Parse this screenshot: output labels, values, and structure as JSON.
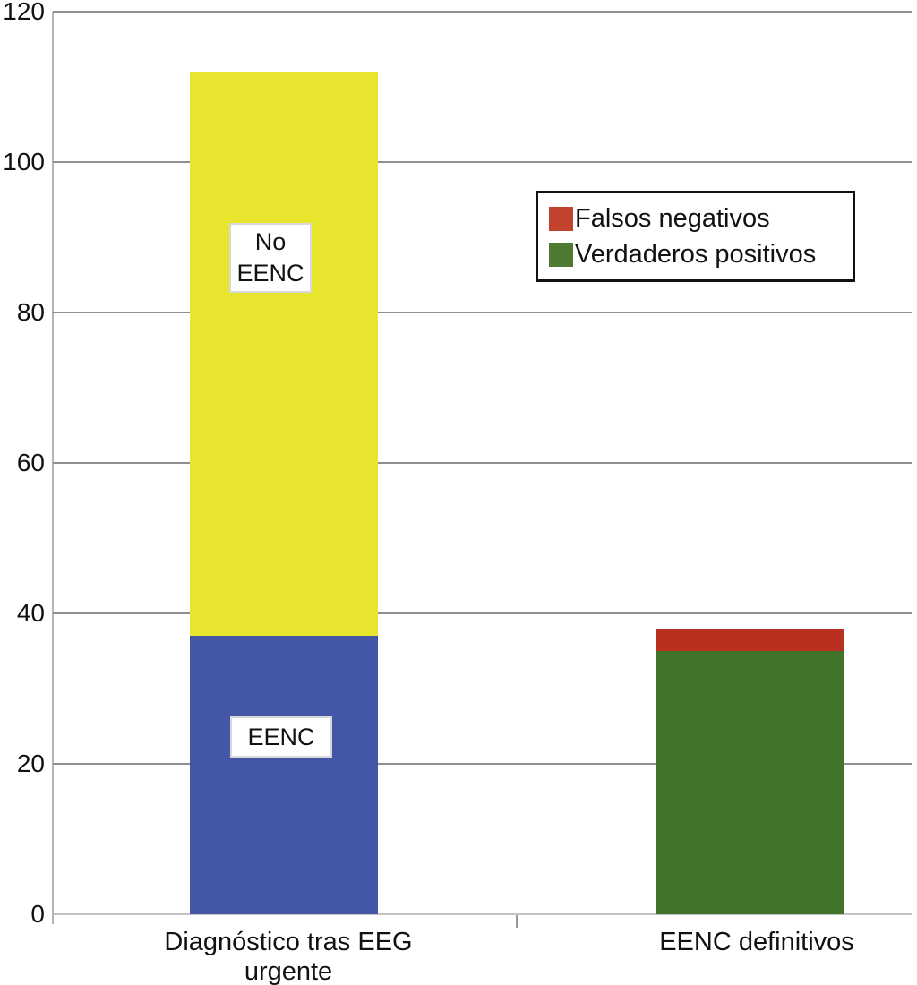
{
  "chart_data": {
    "type": "bar",
    "stacked": true,
    "title": "",
    "xlabel": "",
    "ylabel": "",
    "grid": true,
    "y_axis": {
      "min": 0,
      "max": 120,
      "step": 20,
      "ticks": [
        0,
        20,
        40,
        60,
        80,
        100,
        120
      ]
    },
    "categories": [
      "Diagnóstico tras EEG urgente",
      "EENC definitivos"
    ],
    "x_tick_label_lines": [
      [
        "Diagnóstico tras EEG",
        "urgente"
      ],
      [
        "EENC definitivos"
      ]
    ],
    "bars": [
      {
        "category": "Diagnóstico tras EEG urgente",
        "total": 112,
        "segments": [
          {
            "name": "EENC",
            "value": 37,
            "color": "#4456a6",
            "inner_label_lines": [
              "EENC"
            ]
          },
          {
            "name": "No EENC",
            "value": 75,
            "color": "#e7e52e",
            "inner_label_lines": [
              "No",
              "EENC"
            ]
          }
        ]
      },
      {
        "category": "EENC definitivos",
        "total": 38,
        "segments": [
          {
            "name": "Verdaderos positivos",
            "value": 35,
            "color": "#41742a"
          },
          {
            "name": "Falsos negativos",
            "value": 3,
            "color": "#b93020"
          }
        ]
      }
    ],
    "legend": {
      "position": "upper-right",
      "entries": [
        {
          "label": "Falsos negativos",
          "color": "#c2422e"
        },
        {
          "label": "Verdaderos positivos",
          "color": "#4e7a33"
        }
      ]
    }
  }
}
